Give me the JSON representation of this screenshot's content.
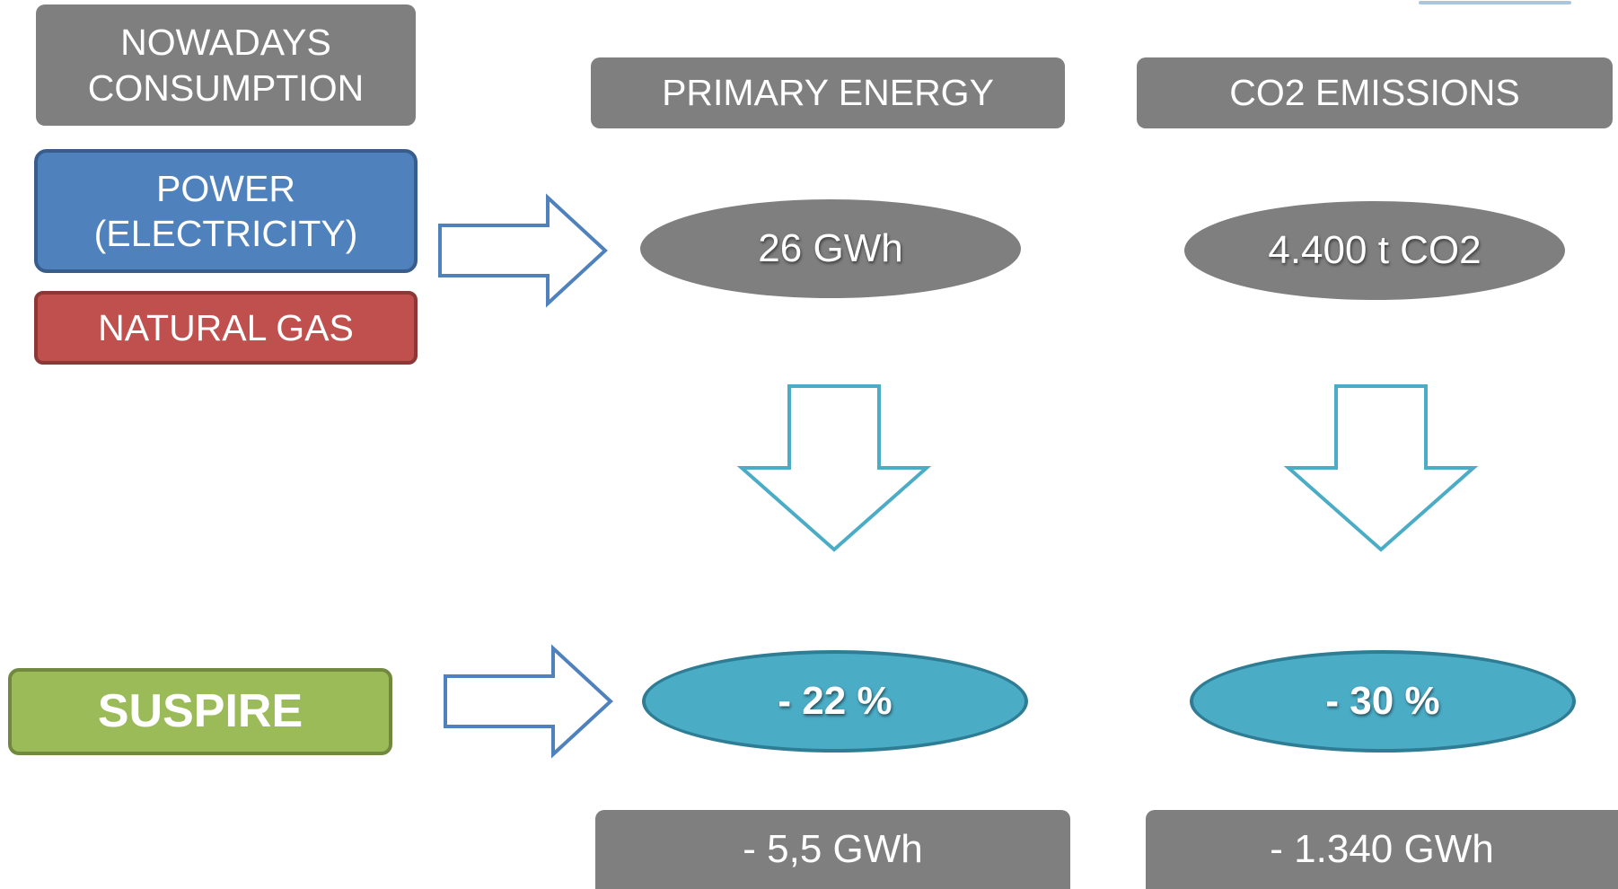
{
  "left": {
    "nowadays": "NOWADAYS\nCONSUMPTION",
    "power": "POWER\n(ELECTRICITY)",
    "gas": "NATURAL GAS",
    "suspire": "SUSPIRE"
  },
  "columns": {
    "primary": {
      "header": "PRIMARY ENERGY",
      "current": "26 GWh",
      "reduction": "- 22 %",
      "saving": "- 5,5 GWh"
    },
    "co2": {
      "header": "CO2 EMISSIONS",
      "current": "4.400 t CO2",
      "reduction": "- 30 %",
      "saving": "- 1.340 GWh"
    }
  },
  "colors": {
    "header_gray": "#7f7f7f",
    "power_blue": "#4f81bd",
    "gas_red": "#c0504d",
    "suspire_green": "#9bbb59",
    "teal": "#4bacc6",
    "arrow_blue": "#4f81bd",
    "arrow_teal": "#4bacc6"
  }
}
